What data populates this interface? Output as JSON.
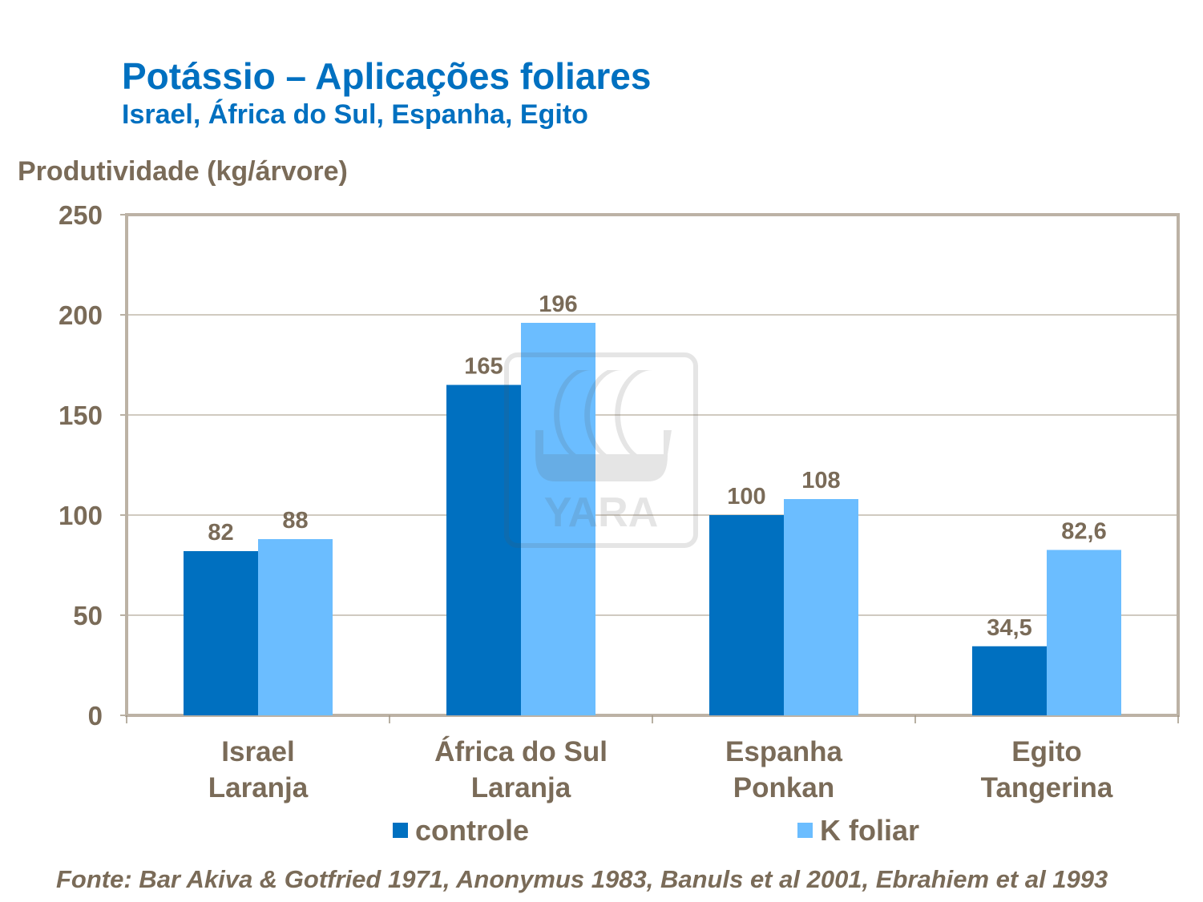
{
  "chart_data": {
    "type": "bar",
    "title": "Potássio – Aplicações foliares",
    "subtitle": "Israel, África do Sul, Espanha, Egito",
    "ylabel": "Produtividade (kg/árvore)",
    "xlabel": "",
    "ylim": [
      0,
      250
    ],
    "yticks": [
      0,
      50,
      100,
      150,
      200,
      250
    ],
    "grid": true,
    "legend_position": "bottom",
    "categories": [
      [
        "Israel",
        "Laranja"
      ],
      [
        "África do Sul",
        "Laranja"
      ],
      [
        "Espanha",
        "Ponkan"
      ],
      [
        "Egito",
        "Tangerina"
      ]
    ],
    "series": [
      {
        "name": "controle",
        "color": "#0070c0",
        "values": [
          82,
          165,
          100,
          34.5
        ],
        "labels": [
          "82",
          "165",
          "100",
          "34,5"
        ]
      },
      {
        "name": "K foliar",
        "color": "#6bbdff",
        "values": [
          88,
          196,
          108,
          82.6
        ],
        "labels": [
          "88",
          "196",
          "108",
          "82,6"
        ]
      }
    ],
    "source": "Fonte: Bar Akiva & Gotfried 1971, Anonymus 1983, Banuls et al 2001, Ebrahiem et al 1993",
    "watermark": "YARA"
  }
}
